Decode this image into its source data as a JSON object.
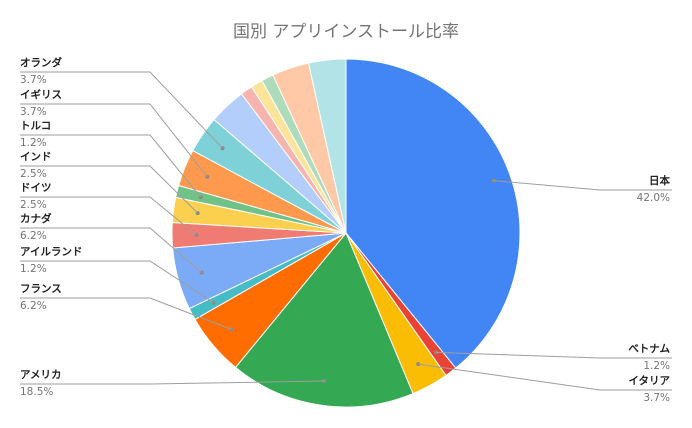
{
  "chart_data": {
    "type": "pie",
    "title": "国別 アプリインストール比率",
    "slices": [
      {
        "label": "日本",
        "value": 42.0,
        "pct_label": "42.0%",
        "color": "#4285f4"
      },
      {
        "label": "ベトナム",
        "value": 1.2,
        "pct_label": "1.2%",
        "color": "#ea4335"
      },
      {
        "label": "イタリア",
        "value": 3.7,
        "pct_label": "3.7%",
        "color": "#fbbc04"
      },
      {
        "label": "アメリカ",
        "value": 18.5,
        "pct_label": "18.5%",
        "color": "#34a853"
      },
      {
        "label": "フランス",
        "value": 6.2,
        "pct_label": "6.2%",
        "color": "#ff6d01"
      },
      {
        "label": "アイルランド",
        "value": 1.2,
        "pct_label": "1.2%",
        "color": "#46bdc6"
      },
      {
        "label": "カナダ",
        "value": 6.2,
        "pct_label": "6.2%",
        "color": "#7baaf7"
      },
      {
        "label": "ドイツ",
        "value": 2.5,
        "pct_label": "2.5%",
        "color": "#f07b72"
      },
      {
        "label": "インド",
        "value": 2.5,
        "pct_label": "2.5%",
        "color": "#fcd04f"
      },
      {
        "label": "トルコ",
        "value": 1.2,
        "pct_label": "1.2%",
        "color": "#71c287"
      },
      {
        "label": "イギリス",
        "value": 3.7,
        "pct_label": "3.7%",
        "color": "#ff994d"
      },
      {
        "label": "オランダ",
        "value": 3.7,
        "pct_label": "3.7%",
        "color": "#7ed1d7"
      },
      {
        "label": "",
        "value": 3.7,
        "pct_label": "",
        "color": "#b3cefb"
      },
      {
        "label": "",
        "value": 1.2,
        "pct_label": "",
        "color": "#f7b4ae"
      },
      {
        "label": "",
        "value": 1.2,
        "pct_label": "",
        "color": "#fde49b"
      },
      {
        "label": "",
        "value": 1.2,
        "pct_label": "",
        "color": "#aedcba"
      },
      {
        "label": "",
        "value": 3.7,
        "pct_label": "",
        "color": "#ffc8a6"
      },
      {
        "label": "",
        "value": 3.7,
        "pct_label": "",
        "color": "#b2e4e7"
      }
    ],
    "legend": "none"
  }
}
